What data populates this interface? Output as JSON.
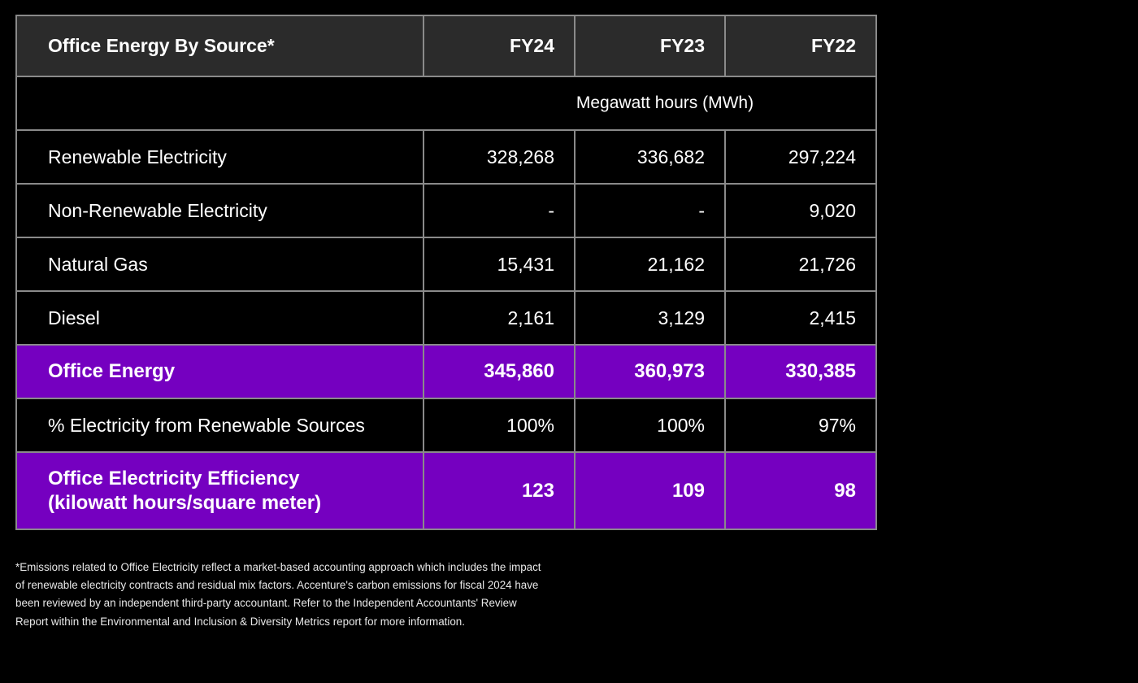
{
  "table": {
    "title": "Office Energy By Source*",
    "columns": [
      "FY24",
      "FY23",
      "FY22"
    ],
    "units": "Megawatt hours (MWh)",
    "rows": [
      {
        "label": "Renewable Electricity",
        "values": [
          "328,268",
          "336,682",
          "297,224"
        ],
        "highlight": false
      },
      {
        "label": "Non-Renewable Electricity",
        "values": [
          "-",
          "-",
          "9,020"
        ],
        "highlight": false
      },
      {
        "label": "Natural Gas",
        "values": [
          "15,431",
          "21,162",
          "21,726"
        ],
        "highlight": false
      },
      {
        "label": "Diesel",
        "values": [
          "2,161",
          "3,129",
          "2,415"
        ],
        "highlight": false
      },
      {
        "label": "Office Energy",
        "values": [
          "345,860",
          "360,973",
          "330,385"
        ],
        "highlight": true
      },
      {
        "label": "% Electricity from Renewable Sources",
        "values": [
          "100%",
          "100%",
          "97%"
        ],
        "highlight": false
      },
      {
        "label": "Office Electricity Efficiency\n(kilowatt hours/square meter)",
        "values": [
          "123",
          "109",
          "98"
        ],
        "highlight": true
      }
    ]
  },
  "footnote": "*Emissions related to Office Electricity reflect a market-based accounting approach which includes the impact of renewable electricity contracts and residual mix factors. Accenture's carbon emissions for fiscal 2024 have been reviewed by an independent third-party accountant. Refer to the Independent Accountants' Review Report within the Environmental and Inclusion & Diversity Metrics report for more information.",
  "colors": {
    "highlight": "#7500c0",
    "header": "#2b2b2b",
    "background": "#000000",
    "border": "#8a8a8a"
  }
}
